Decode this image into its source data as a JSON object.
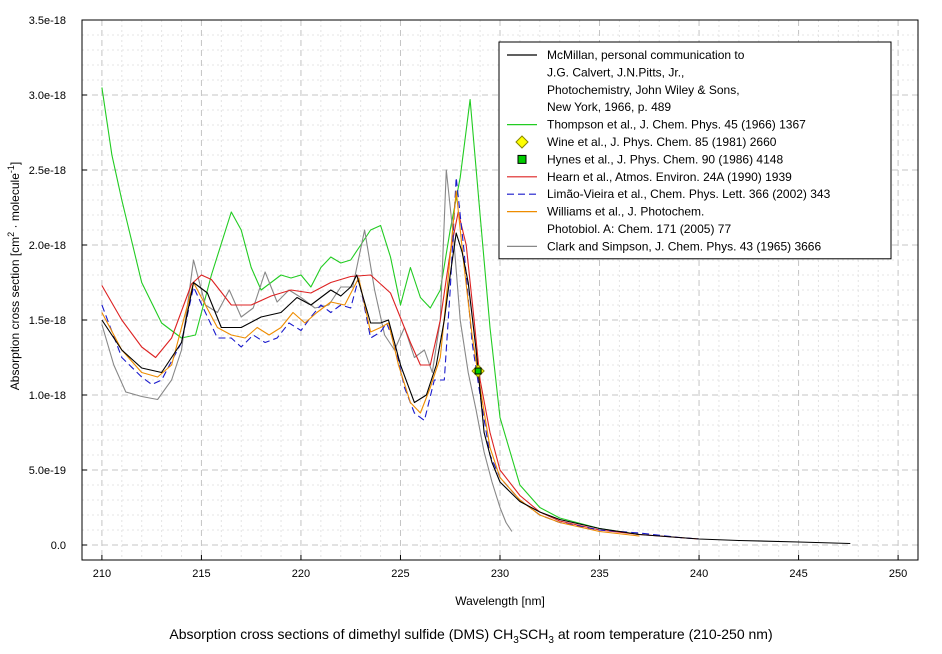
{
  "chart_data": {
    "type": "line",
    "title": "",
    "xlabel": "Wavelength [nm]",
    "ylabel": "Absorption cross section [cm",
    "ylabel_sup1": "2",
    "ylabel_mid": " · molecule",
    "ylabel_sup2": "-1",
    "ylabel_end": "]",
    "xlim": [
      209,
      251
    ],
    "ylim": [
      -1e-19,
      3.5e-18
    ],
    "grid": true,
    "legend_position": "top-right",
    "x_ticks": [
      210,
      215,
      220,
      225,
      230,
      235,
      240,
      245,
      250
    ],
    "x_tick_labels": [
      "210",
      "215",
      "220",
      "225",
      "230",
      "235",
      "240",
      "245",
      "250"
    ],
    "y_ticks": [
      0,
      5e-19,
      1e-18,
      1.5e-18,
      2e-18,
      2.5e-18,
      3e-18,
      3.5e-18
    ],
    "y_tick_labels": [
      "0.0",
      "5.0e-19",
      "1.0e-18",
      "1.5e-18",
      "2.0e-18",
      "2.5e-18",
      "3.0e-18",
      "3.5e-18"
    ],
    "series": [
      {
        "name": "McMillan, personal communication to J.G. Calvert, J.N.Pitts, Jr., Photochemistry, John Wiley & Sons, New York, 1966, p. 489",
        "legend_lines": [
          "McMillan, personal communication to",
          "J.G. Calvert, J.N.Pitts, Jr.,",
          "Photochemistry, John Wiley & Sons,",
          "New York, 1966, p. 489"
        ],
        "color": "#000000",
        "dash": "",
        "marker": "line",
        "x": [
          210,
          211,
          212,
          213,
          214,
          214.6,
          215.3,
          216,
          217,
          218,
          219,
          219.8,
          220.5,
          221.5,
          222,
          222.5,
          222.8,
          223.5,
          224,
          224.4,
          225,
          225.7,
          226.3,
          226.8,
          227.2,
          227.5,
          227.8,
          228.1,
          228.4,
          228.8,
          229.2,
          229.6,
          230,
          231,
          232,
          233,
          235,
          237,
          240,
          242,
          245,
          247.6
        ],
        "y": [
          1.5e-18,
          1.3e-18,
          1.18e-18,
          1.15e-18,
          1.35e-18,
          1.75e-18,
          1.68e-18,
          1.45e-18,
          1.45e-18,
          1.52e-18,
          1.55e-18,
          1.65e-18,
          1.6e-18,
          1.7e-18,
          1.66e-18,
          1.72e-18,
          1.8e-18,
          1.48e-18,
          1.48e-18,
          1.5e-18,
          1.2e-18,
          9.5e-19,
          1e-18,
          1.2e-18,
          1.5e-18,
          1.8e-18,
          2.08e-18,
          1.95e-18,
          1.75e-18,
          1.3e-18,
          7.5e-19,
          5.5e-19,
          4.2e-19,
          2.9e-19,
          2.2e-19,
          1.7e-19,
          1.1e-19,
          7e-20,
          4e-20,
          3e-20,
          2e-20,
          1e-20
        ]
      },
      {
        "name": "Thompson et al., J. Chem. Phys. 45 (1966) 1367",
        "legend_lines": [
          "Thompson et al., J. Chem. Phys. 45 (1966) 1367"
        ],
        "color": "#22cc22",
        "dash": "",
        "marker": "line",
        "x": [
          210,
          210.5,
          211,
          212,
          213,
          214,
          214.7,
          215.5,
          216.5,
          217,
          217.5,
          218,
          218.5,
          219,
          219.5,
          220,
          220.5,
          221,
          221.5,
          222,
          222.5,
          223,
          223.5,
          224,
          224.5,
          225,
          225.5,
          226,
          226.5,
          227,
          227.5,
          228,
          228.5,
          229,
          229.5,
          230,
          231,
          232,
          233,
          235,
          237
        ],
        "y": [
          3.05e-18,
          2.6e-18,
          2.3e-18,
          1.75e-18,
          1.48e-18,
          1.38e-18,
          1.4e-18,
          1.8e-18,
          2.22e-18,
          2.1e-18,
          1.85e-18,
          1.7e-18,
          1.75e-18,
          1.8e-18,
          1.78e-18,
          1.8e-18,
          1.72e-18,
          1.85e-18,
          1.92e-18,
          1.88e-18,
          1.9e-18,
          2e-18,
          2.1e-18,
          2.13e-18,
          1.92e-18,
          1.6e-18,
          1.85e-18,
          1.65e-18,
          1.58e-18,
          1.7e-18,
          2.1e-18,
          2.45e-18,
          2.97e-18,
          2.2e-18,
          1.45e-18,
          8.5e-19,
          4e-19,
          2.5e-19,
          1.8e-19,
          1.1e-19,
          7e-20
        ]
      },
      {
        "name": "Wine et al., J. Phys. Chem. 85 (1981) 2660",
        "legend_lines": [
          "Wine et al., J. Phys. Chem. 85 (1981) 2660"
        ],
        "color": "#ffff00",
        "stroke": "#888800",
        "dash": "",
        "marker": "diamond",
        "x": [
          228.9
        ],
        "y": [
          1.16e-18
        ]
      },
      {
        "name": "Hynes et al., J. Phys. Chem. 90 (1986) 4148",
        "legend_lines": [
          "Hynes et al., J. Phys. Chem. 90 (1986) 4148"
        ],
        "color": "#00cc00",
        "stroke": "#000000",
        "dash": "",
        "marker": "square",
        "x": [
          228.9
        ],
        "y": [
          1.16e-18
        ]
      },
      {
        "name": "Hearn et al., Atmos. Environ. 24A (1990) 1939",
        "legend_lines": [
          "Hearn et al., Atmos. Environ. 24A (1990) 1939"
        ],
        "color": "#dd2222",
        "dash": "",
        "marker": "line",
        "x": [
          210,
          211,
          212,
          212.7,
          213.5,
          214.5,
          215,
          215.5,
          216.5,
          217.5,
          218.5,
          219.5,
          220.5,
          221.5,
          222.5,
          223.5,
          224.5,
          225.5,
          226,
          226.5,
          227,
          227.5,
          227.9,
          228.3,
          228.7,
          229,
          229.5,
          230,
          231,
          232,
          233,
          235,
          237,
          240
        ],
        "y": [
          1.73e-18,
          1.5e-18,
          1.32e-18,
          1.25e-18,
          1.38e-18,
          1.74e-18,
          1.8e-18,
          1.77e-18,
          1.6e-18,
          1.6e-18,
          1.66e-18,
          1.7e-18,
          1.68e-18,
          1.75e-18,
          1.79e-18,
          1.8e-18,
          1.68e-18,
          1.35e-18,
          1.2e-18,
          1.2e-18,
          1.5e-18,
          1.95e-18,
          2.22e-18,
          2e-18,
          1.5e-18,
          1.1e-18,
          7.5e-19,
          5e-19,
          3.3e-19,
          2.2e-19,
          1.6e-19,
          1e-19,
          7e-20,
          4e-20
        ]
      },
      {
        "name": "Limão-Vieira et al., Chem. Phys. Lett. 366 (2002) 343",
        "legend_lines": [
          "Limão-Vieira et al., Chem. Phys. Lett. 366 (2002) 343"
        ],
        "color": "#1a1acc",
        "dash": "7,4",
        "marker": "line",
        "x": [
          210,
          211,
          212,
          212.5,
          213,
          214,
          214.6,
          215.2,
          215.8,
          216.5,
          217,
          217.6,
          218.2,
          218.8,
          219.4,
          220,
          220.5,
          221,
          221.5,
          222,
          222.5,
          222.9,
          223.5,
          224,
          224.3,
          224.7,
          225.2,
          225.7,
          226.2,
          226.7,
          227.2,
          227.5,
          227.8,
          228.2,
          228.6,
          229,
          229.5,
          230,
          231,
          232,
          233,
          235,
          237,
          239,
          240
        ],
        "y": [
          1.6e-18,
          1.25e-18,
          1.12e-18,
          1.07e-18,
          1.1e-18,
          1.35e-18,
          1.72e-18,
          1.55e-18,
          1.38e-18,
          1.38e-18,
          1.32e-18,
          1.4e-18,
          1.35e-18,
          1.38e-18,
          1.48e-18,
          1.43e-18,
          1.52e-18,
          1.6e-18,
          1.55e-18,
          1.6e-18,
          1.58e-18,
          1.78e-18,
          1.38e-18,
          1.42e-18,
          1.48e-18,
          1.35e-18,
          1.05e-18,
          8.8e-19,
          8.3e-19,
          1.1e-18,
          1.1e-18,
          1.7e-18,
          2.45e-18,
          1.95e-18,
          1.35e-18,
          1e-18,
          6e-19,
          4.5e-19,
          3e-19,
          2e-19,
          1.5e-19,
          1e-19,
          8e-20,
          5e-20,
          4e-20
        ]
      },
      {
        "name": "Williams et al., J. Photochem. Photobiol. A: Chem. 171 (2005) 77",
        "legend_lines": [
          "Williams et al., J. Photochem.",
          "Photobiol. A: Chem. 171 (2005) 77"
        ],
        "color": "#ee8c00",
        "dash": "",
        "marker": "line",
        "x": [
          210,
          211,
          212,
          212.8,
          213.5,
          214.6,
          215.2,
          215.8,
          216.5,
          217.2,
          217.8,
          218.4,
          219,
          219.6,
          220.2,
          220.8,
          221.5,
          222.2,
          222.9,
          223.5,
          224,
          224.4,
          224.9,
          225.5,
          226,
          226.5,
          227,
          227.3,
          227.8,
          228.2,
          228.6,
          229,
          229.5,
          230,
          231,
          232,
          233,
          235,
          237
        ],
        "y": [
          1.55e-18,
          1.3e-18,
          1.15e-18,
          1.12e-18,
          1.2e-18,
          1.75e-18,
          1.6e-18,
          1.45e-18,
          1.4e-18,
          1.38e-18,
          1.45e-18,
          1.4e-18,
          1.45e-18,
          1.55e-18,
          1.48e-18,
          1.55e-18,
          1.62e-18,
          1.6e-18,
          1.78e-18,
          1.42e-18,
          1.45e-18,
          1.48e-18,
          1.2e-18,
          9.5e-19,
          8.8e-19,
          1.05e-18,
          1.25e-18,
          1.65e-18,
          2.36e-18,
          1.85e-18,
          1.4e-18,
          1.05e-18,
          6.5e-19,
          4.5e-19,
          3e-19,
          2e-19,
          1.5e-19,
          9e-20,
          6e-20
        ]
      },
      {
        "name": "Clark and Simpson, J. Chem. Phys. 43 (1965) 3666",
        "legend_lines": [
          "Clark and Simpson, J. Chem. Phys. 43 (1965) 3666"
        ],
        "color": "#888888",
        "dash": "",
        "marker": "line",
        "x": [
          210,
          210.6,
          211.2,
          212,
          212.8,
          213.5,
          214,
          214.6,
          215.2,
          215.8,
          216.4,
          217,
          217.6,
          218.2,
          218.8,
          219.4,
          220,
          220.7,
          221.4,
          222,
          222.6,
          223.2,
          223.7,
          224.2,
          224.7,
          225.2,
          225.7,
          226.2,
          226.6,
          227,
          227.3,
          227.7,
          228,
          228.4,
          228.8,
          229.2,
          229.6,
          230,
          230.3,
          230.6
        ],
        "y": [
          1.47e-18,
          1.2e-18,
          1.02e-18,
          9.9e-19,
          9.7e-19,
          1.1e-18,
          1.3e-18,
          1.9e-18,
          1.6e-18,
          1.55e-18,
          1.7e-18,
          1.52e-18,
          1.58e-18,
          1.82e-18,
          1.62e-18,
          1.7e-18,
          1.65e-18,
          1.58e-18,
          1.6e-18,
          1.72e-18,
          1.72e-18,
          2.1e-18,
          1.7e-18,
          1.4e-18,
          1.3e-18,
          1.45e-18,
          1.25e-18,
          1.3e-18,
          1.15e-18,
          1.5e-18,
          2.5e-18,
          2e-18,
          1.5e-18,
          1.15e-18,
          9e-19,
          6.2e-19,
          4.2e-19,
          2.5e-19,
          1.5e-19,
          9e-20
        ]
      }
    ]
  },
  "caption": {
    "prefix": "Absorption cross sections of dimethyl sulfide (DMS) CH",
    "sub1": "3",
    "mid": "SCH",
    "sub2": "3",
    "suffix": " at room temperature (210-250 nm)"
  }
}
